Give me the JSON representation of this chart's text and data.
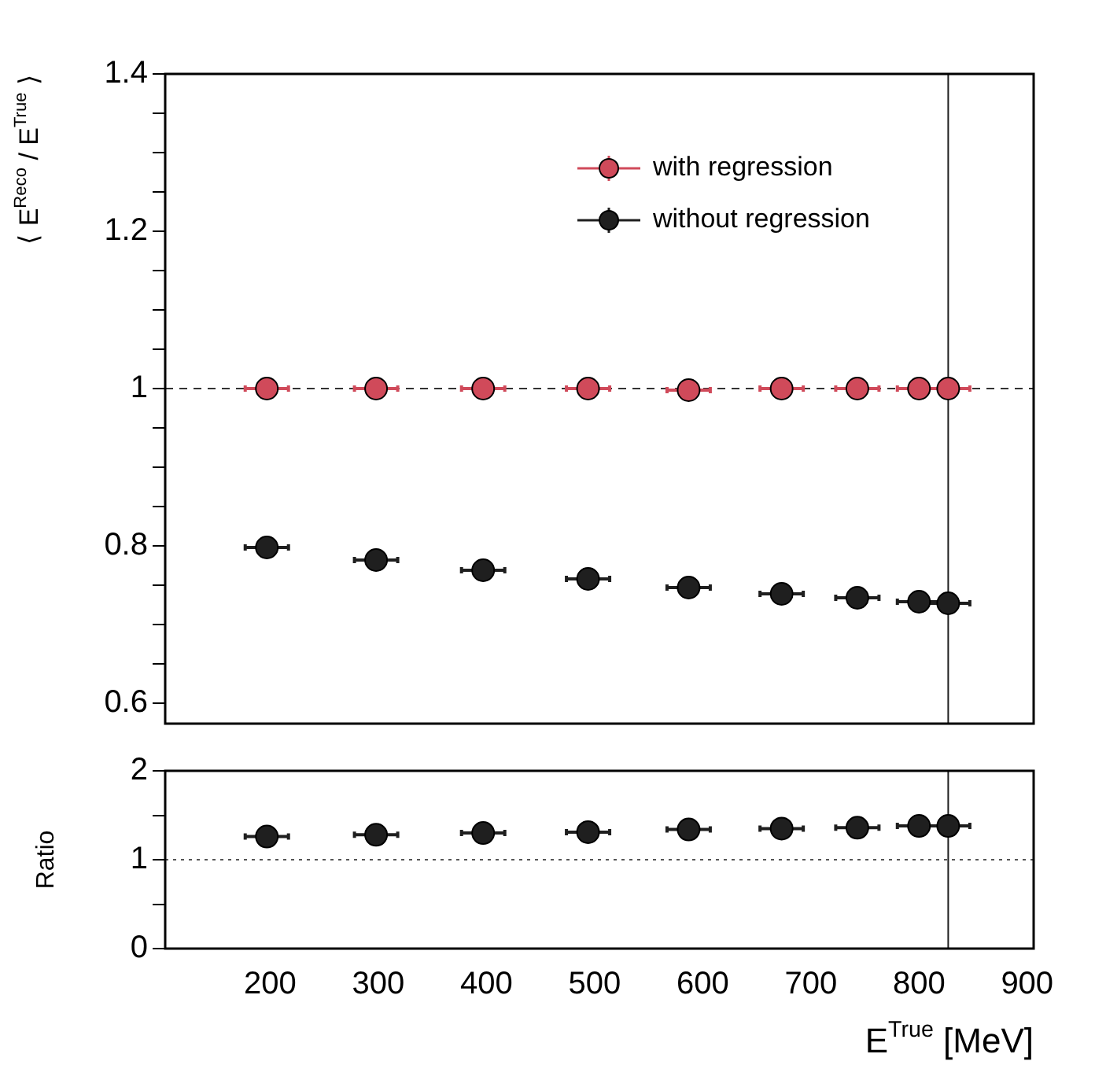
{
  "chart_data": [
    {
      "type": "scatter",
      "ylabel": "⟨ E$^{Reco}$ / E$^{True}$ ⟩",
      "marker": "circle",
      "legend": "top right",
      "tick_labels": "y",
      "x": [
        197,
        298,
        397,
        494,
        587,
        673,
        743,
        800,
        827
      ],
      "xlim": [
        103,
        906
      ],
      "xticks": [
        200,
        300,
        400,
        500,
        600,
        700,
        800,
        900
      ],
      "ylim": [
        0.574,
        1.4
      ],
      "yticks": [
        0.6,
        {
          "value": 0.65,
          "label": null
        },
        {
          "value": 0.7,
          "label": null
        },
        {
          "value": 0.75,
          "label": null
        },
        0.8,
        {
          "value": 0.85,
          "label": null
        },
        {
          "value": 0.9,
          "label": null
        },
        {
          "value": 0.95,
          "label": null
        },
        1,
        {
          "value": 1.05,
          "label": null
        },
        {
          "value": 1.1,
          "label": null
        },
        {
          "value": 1.15,
          "label": null
        },
        1.2,
        {
          "value": 1.25,
          "label": null
        },
        {
          "value": 1.3,
          "label": null
        },
        {
          "value": 1.35,
          "label": null
        },
        1.4
      ],
      "series": [
        {
          "name": "with regression",
          "color": "#d04a5a",
          "values": [
            1,
            1,
            1,
            1,
            0.998,
            1,
            1,
            1,
            1
          ],
          "xerrors": [
            20,
            20,
            20,
            20,
            20,
            20,
            20,
            20,
            20
          ]
        },
        {
          "name": "without regression",
          "color": "#1f1f1f",
          "values": [
            0.798,
            0.782,
            0.769,
            0.758,
            0.747,
            0.739,
            0.734,
            0.729,
            0.727
          ],
          "xerrors": [
            20,
            20,
            20,
            20,
            20,
            20,
            20,
            20,
            20
          ]
        }
      ],
      "ref_lines": [
        {
          "axis": "y",
          "value": 1,
          "line_style": "dashed",
          "color": "#333333"
        },
        {
          "axis": "x",
          "value": 827,
          "line_style": "solid",
          "color": "#1f1f1f"
        }
      ]
    },
    {
      "type": "scatter",
      "xlabel": "E$^{True}$ [MeV]",
      "ylabel": "Ratio",
      "marker": "circle",
      "x": [
        197,
        298,
        397,
        494,
        587,
        673,
        743,
        800,
        827
      ],
      "xlim": [
        103,
        906
      ],
      "xticks": [
        200,
        300,
        400,
        500,
        600,
        700,
        800,
        900
      ],
      "ylim": [
        0,
        2
      ],
      "yticks": [
        0,
        {
          "value": 0.5,
          "label": null
        },
        1,
        {
          "value": 1.5,
          "label": null
        },
        2
      ],
      "series": [
        {
          "color": "#1f1f1f",
          "values": [
            1.26,
            1.28,
            1.3,
            1.31,
            1.34,
            1.35,
            1.36,
            1.38,
            1.38
          ],
          "xerrors": [
            20,
            20,
            20,
            20,
            20,
            20,
            20,
            20,
            20
          ]
        }
      ],
      "ref_lines": [
        {
          "axis": "y",
          "value": 1,
          "line_style": "dotted",
          "color": "#555555"
        },
        {
          "axis": "x",
          "value": 827,
          "line_style": "solid",
          "color": "#1f1f1f"
        }
      ]
    }
  ]
}
